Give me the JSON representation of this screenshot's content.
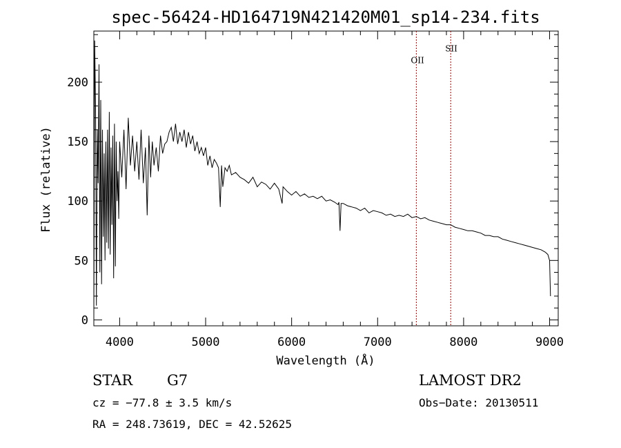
{
  "chart_data": {
    "type": "line",
    "title": "spec-56424-HD164719N421420M01_sp14-234.fits",
    "xlabel": "Wavelength (Å)",
    "ylabel": "Flux (relative)",
    "xlim": [
      3700,
      9100
    ],
    "ylim": [
      -5,
      243
    ],
    "xticks": [
      4000,
      5000,
      6000,
      7000,
      8000,
      9000
    ],
    "yticks": [
      0,
      50,
      100,
      150,
      200
    ],
    "grid": false,
    "series": [
      {
        "x": [
          3700,
          3710,
          3720,
          3730,
          3740,
          3750,
          3760,
          3770,
          3780,
          3790,
          3800,
          3810,
          3820,
          3830,
          3840,
          3850,
          3860,
          3870,
          3880,
          3890,
          3900,
          3910,
          3920,
          3930,
          3940,
          3950,
          3960,
          3970,
          3980,
          3990,
          4000,
          4025,
          4050,
          4075,
          4100,
          4125,
          4150,
          4175,
          4200,
          4225,
          4250,
          4275,
          4300,
          4320,
          4340,
          4360,
          4380,
          4400,
          4425,
          4450,
          4475,
          4500,
          4525,
          4550,
          4575,
          4600,
          4625,
          4650,
          4675,
          4700,
          4725,
          4750,
          4775,
          4800,
          4825,
          4850,
          4875,
          4900,
          4925,
          4950,
          4975,
          5000,
          5025,
          5050,
          5075,
          5100,
          5125,
          5150,
          5170,
          5185,
          5200,
          5225,
          5250,
          5275,
          5300,
          5350,
          5400,
          5450,
          5500,
          5550,
          5600,
          5650,
          5700,
          5750,
          5800,
          5850,
          5890,
          5900,
          5950,
          6000,
          6050,
          6100,
          6150,
          6200,
          6250,
          6300,
          6350,
          6400,
          6450,
          6500,
          6540,
          6550,
          6563,
          6575,
          6600,
          6650,
          6700,
          6750,
          6800,
          6850,
          6900,
          6950,
          7000,
          7050,
          7100,
          7150,
          7200,
          7250,
          7300,
          7350,
          7400,
          7450,
          7500,
          7550,
          7600,
          7650,
          7700,
          7750,
          7800,
          7850,
          7900,
          7950,
          8000,
          8050,
          8100,
          8150,
          8200,
          8250,
          8300,
          8350,
          8400,
          8450,
          8500,
          8550,
          8600,
          8650,
          8700,
          8750,
          8800,
          8850,
          8900,
          8950,
          8980,
          9000,
          9010
        ],
        "y": [
          2,
          235,
          180,
          12,
          160,
          115,
          215,
          40,
          185,
          30,
          160,
          70,
          140,
          50,
          150,
          65,
          160,
          60,
          175,
          55,
          145,
          80,
          155,
          35,
          165,
          45,
          150,
          100,
          125,
          85,
          150,
          120,
          160,
          110,
          170,
          130,
          155,
          125,
          150,
          118,
          160,
          115,
          145,
          88,
          155,
          120,
          150,
          130,
          145,
          125,
          155,
          140,
          148,
          150,
          158,
          162,
          150,
          165,
          148,
          158,
          150,
          160,
          145,
          158,
          148,
          155,
          142,
          150,
          140,
          145,
          138,
          145,
          130,
          138,
          128,
          135,
          132,
          128,
          95,
          130,
          112,
          128,
          125,
          130,
          122,
          124,
          120,
          118,
          115,
          120,
          112,
          116,
          114,
          110,
          115,
          110,
          98,
          112,
          108,
          105,
          108,
          104,
          106,
          103,
          104,
          102,
          104,
          100,
          101,
          99,
          97,
          99,
          75,
          98,
          98,
          96,
          95,
          94,
          92,
          94,
          90,
          92,
          91,
          90,
          88,
          89,
          87,
          88,
          87,
          89,
          86,
          87,
          85,
          86,
          84,
          83,
          82,
          81,
          80,
          80,
          78,
          77,
          76,
          75,
          75,
          74,
          73,
          71,
          71,
          70,
          70,
          68,
          67,
          66,
          65,
          64,
          63,
          62,
          61,
          60,
          59,
          57,
          55,
          50,
          20
        ]
      }
    ],
    "annotations": [
      {
        "label": "OII",
        "x": 7450,
        "y": 216
      },
      {
        "label": "SII",
        "x": 7850,
        "y": 226
      }
    ]
  },
  "info": {
    "class": "STAR",
    "subclass": "G7",
    "survey": "LAMOST DR2",
    "cz": "cz = −77.8 ± 3.5 km/s",
    "obsdate": "Obs−Date: 20130511",
    "radec": "RA = 248.73619, DEC =  42.52625"
  },
  "colors": {
    "axes": "#000000",
    "spectrum": "#000000",
    "line_marker": "#8b0000"
  }
}
